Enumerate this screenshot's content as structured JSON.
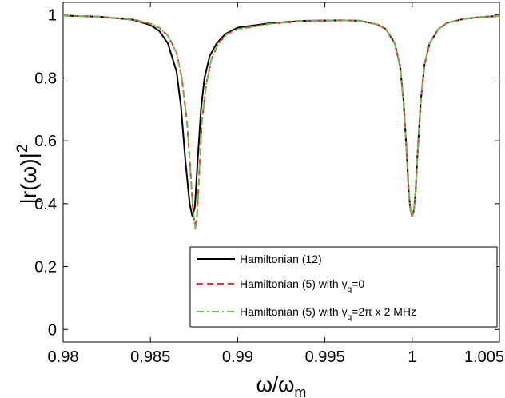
{
  "chart_data": {
    "type": "line",
    "title": "",
    "xlabel": {
      "base": "ω/ω",
      "sub": "m"
    },
    "ylabel": {
      "base": "|r(ω)|",
      "sup": "2"
    },
    "xlim": [
      0.98,
      1.005
    ],
    "ylim": [
      -0.04,
      1.04
    ],
    "x_ticks": [
      "0.98",
      "0.985",
      "0.99",
      "0.995",
      "1",
      "1.005"
    ],
    "x_tick_values": [
      0.98,
      0.985,
      0.99,
      0.995,
      1.0,
      1.005
    ],
    "y_ticks": [
      "0",
      "0.2",
      "0.4",
      "0.6",
      "0.8",
      "1"
    ],
    "y_tick_values": [
      0,
      0.2,
      0.4,
      0.6,
      0.8,
      1.0
    ],
    "grid": false,
    "legend_position": "bottom-right",
    "series": [
      {
        "key": "h12",
        "legend": {
          "text": "Hamiltonian (12)"
        },
        "color": "#000000",
        "style": "solid",
        "x": [
          0.98,
          0.982,
          0.984,
          0.985,
          0.9855,
          0.986,
          0.9865,
          0.98675,
          0.987,
          0.98725,
          0.9874,
          0.98755,
          0.9877,
          0.9879,
          0.9881,
          0.9884,
          0.9888,
          0.9893,
          0.99,
          0.992,
          0.994,
          0.996,
          0.997,
          0.998,
          0.9985,
          0.999,
          0.9993,
          0.9995,
          0.9997,
          0.9998,
          0.9999,
          1.0,
          1.0001,
          1.0002,
          1.0003,
          1.0005,
          1.0007,
          1.001,
          1.0015,
          1.002,
          1.003,
          1.004,
          1.005
        ],
        "y": [
          0.998,
          0.995,
          0.985,
          0.968,
          0.95,
          0.91,
          0.82,
          0.71,
          0.54,
          0.4,
          0.36,
          0.39,
          0.53,
          0.7,
          0.8,
          0.87,
          0.91,
          0.94,
          0.96,
          0.975,
          0.982,
          0.983,
          0.982,
          0.97,
          0.955,
          0.91,
          0.84,
          0.73,
          0.55,
          0.44,
          0.38,
          0.36,
          0.38,
          0.44,
          0.55,
          0.73,
          0.84,
          0.91,
          0.955,
          0.975,
          0.988,
          0.994,
          0.997
        ]
      },
      {
        "key": "h5",
        "legend": {
          "text": "Hamiltonian (5) with γ",
          "sub": "q",
          "tail": "=0"
        },
        "color": "#e8303a",
        "style": "dashed",
        "x": [
          0.98,
          0.982,
          0.984,
          0.985,
          0.9855,
          0.986,
          0.9865,
          0.9868,
          0.9871,
          0.9873,
          0.98745,
          0.98757,
          0.98767,
          0.9878,
          0.98795,
          0.9882,
          0.9885,
          0.9889,
          0.9894,
          0.99,
          0.992,
          0.994,
          0.996,
          0.997,
          0.998,
          0.9985,
          0.999,
          0.9993,
          0.9995,
          0.9997,
          0.9998,
          0.9999,
          1.0,
          1.0001,
          1.0002,
          1.0003,
          1.0005,
          1.0007,
          1.001,
          1.0015,
          1.002,
          1.003,
          1.004,
          1.005
        ],
        "y": [
          0.998,
          0.995,
          0.986,
          0.972,
          0.96,
          0.935,
          0.88,
          0.8,
          0.66,
          0.5,
          0.37,
          0.33,
          0.36,
          0.5,
          0.66,
          0.78,
          0.86,
          0.91,
          0.94,
          0.955,
          0.973,
          0.981,
          0.983,
          0.982,
          0.97,
          0.955,
          0.91,
          0.84,
          0.73,
          0.55,
          0.44,
          0.38,
          0.36,
          0.38,
          0.44,
          0.55,
          0.73,
          0.84,
          0.91,
          0.955,
          0.975,
          0.988,
          0.994,
          0.997
        ]
      },
      {
        "key": "h5g",
        "legend": {
          "text": "Hamiltonian (5) with γ",
          "sub": "q",
          "tail": "=2π x 2 MHz"
        },
        "color": "#6cc04a",
        "style": "dashdot",
        "x": [
          0.98,
          0.982,
          0.984,
          0.985,
          0.9855,
          0.986,
          0.9865,
          0.9868,
          0.9871,
          0.9873,
          0.98745,
          0.98757,
          0.98767,
          0.9878,
          0.98795,
          0.9882,
          0.9885,
          0.9889,
          0.9894,
          0.99,
          0.992,
          0.994,
          0.996,
          0.997,
          0.998,
          0.9985,
          0.999,
          0.9993,
          0.9995,
          0.9997,
          0.9998,
          0.9999,
          1.0,
          1.0001,
          1.0002,
          1.0003,
          1.0005,
          1.0007,
          1.001,
          1.0015,
          1.002,
          1.003,
          1.004,
          1.005
        ],
        "y": [
          0.998,
          0.995,
          0.986,
          0.972,
          0.96,
          0.935,
          0.88,
          0.8,
          0.66,
          0.5,
          0.37,
          0.32,
          0.35,
          0.5,
          0.66,
          0.78,
          0.86,
          0.91,
          0.94,
          0.955,
          0.973,
          0.981,
          0.983,
          0.982,
          0.97,
          0.955,
          0.91,
          0.84,
          0.73,
          0.55,
          0.44,
          0.38,
          0.36,
          0.38,
          0.44,
          0.55,
          0.73,
          0.84,
          0.91,
          0.955,
          0.975,
          0.988,
          0.994,
          0.997
        ]
      }
    ]
  }
}
